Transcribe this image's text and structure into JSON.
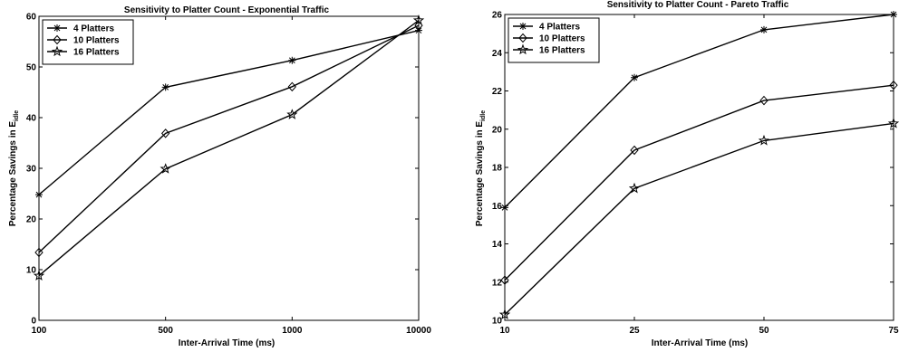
{
  "chart_data": [
    {
      "type": "line",
      "title": "Sensitivity to Platter Count - Exponential Traffic",
      "xlabel": "Inter-Arrival Time (ms)",
      "ylabel_main": "Percentage Savings in E",
      "ylabel_sub": "idle",
      "x_scale": "categorical",
      "categories": [
        "100",
        "500",
        "1000",
        "10000"
      ],
      "ylim": [
        0,
        60
      ],
      "yticks": [
        "0",
        "10",
        "20",
        "30",
        "40",
        "50",
        "60"
      ],
      "legend_position": "top-left",
      "grid": false,
      "series": [
        {
          "name": "4 Platters",
          "marker": "asterisk",
          "values": [
            24.8,
            46.0,
            51.3,
            57.2
          ]
        },
        {
          "name": "10 Platters",
          "marker": "diamond",
          "values": [
            13.4,
            36.9,
            46.1,
            58.2
          ]
        },
        {
          "name": "16 Platters",
          "marker": "star",
          "values": [
            8.8,
            29.9,
            40.6,
            59.2
          ]
        }
      ]
    },
    {
      "type": "line",
      "title": "Sensitivity to Platter Count - Pareto Traffic",
      "xlabel": "Inter-Arrival Time (ms)",
      "ylabel_main": "Percentage Savings in E",
      "ylabel_sub": "idle",
      "x_scale": "categorical",
      "categories": [
        "10",
        "25",
        "50",
        "75"
      ],
      "ylim": [
        10,
        26
      ],
      "yticks": [
        "10",
        "12",
        "14",
        "16",
        "18",
        "20",
        "22",
        "24",
        "26"
      ],
      "legend_position": "top-left",
      "grid": false,
      "series": [
        {
          "name": "4 Platters",
          "marker": "asterisk",
          "values": [
            15.9,
            22.7,
            25.2,
            26.0
          ]
        },
        {
          "name": "10 Platters",
          "marker": "diamond",
          "values": [
            12.1,
            18.9,
            21.5,
            22.3
          ]
        },
        {
          "name": "16 Platters",
          "marker": "star",
          "values": [
            10.3,
            16.9,
            19.4,
            20.3
          ]
        }
      ]
    }
  ]
}
